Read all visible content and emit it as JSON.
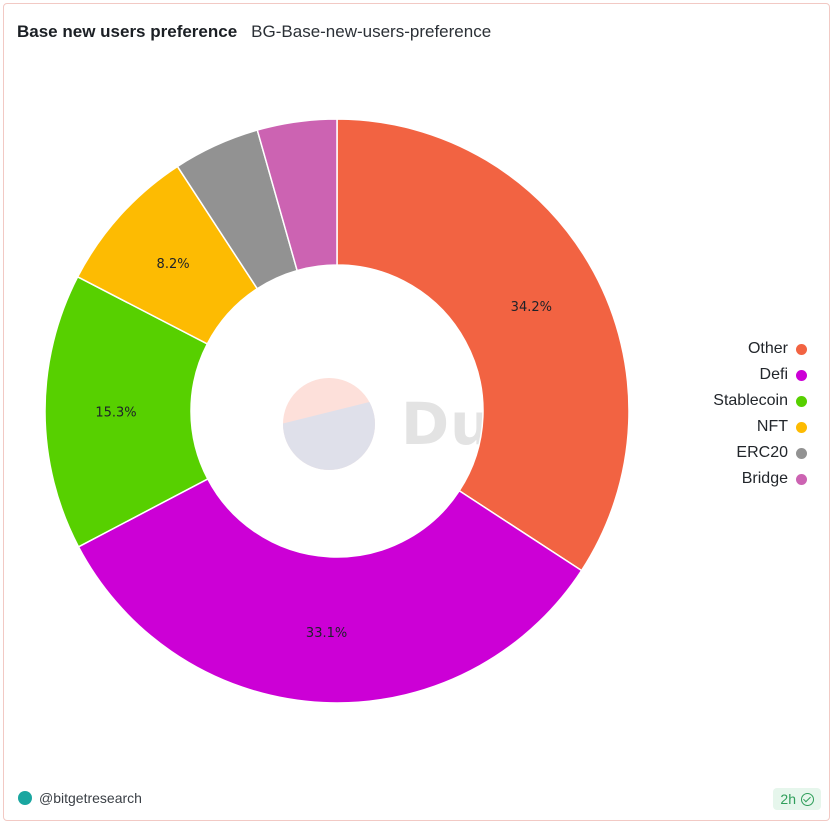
{
  "header": {
    "title": "Base new users preference",
    "subtitle": "BG-Base-new-users-preference"
  },
  "chart_data": {
    "type": "pie",
    "style": "donut",
    "categories": [
      "Other",
      "Defi",
      "Stablecoin",
      "NFT",
      "ERC20",
      "Bridge"
    ],
    "values": [
      34.2,
      33.1,
      15.3,
      8.2,
      4.8,
      4.4
    ],
    "labels": [
      "34.2%",
      "33.1%",
      "15.3%",
      "8.2%",
      "",
      ""
    ],
    "colors": [
      "#f26342",
      "#cc00d6",
      "#57d000",
      "#fdbb02",
      "#929292",
      "#cc63b2"
    ],
    "legend_position": "right",
    "unit": "%"
  },
  "legend": {
    "items": [
      {
        "label": "Other",
        "color": "#f26342"
      },
      {
        "label": "Defi",
        "color": "#cc00d6"
      },
      {
        "label": "Stablecoin",
        "color": "#57d000"
      },
      {
        "label": "NFT",
        "color": "#fdbb02"
      },
      {
        "label": "ERC20",
        "color": "#929292"
      },
      {
        "label": "Bridge",
        "color": "#cc63b2"
      }
    ]
  },
  "watermark": {
    "text": "Dune"
  },
  "footer": {
    "author": "@bitgetresearch",
    "age_badge": "2h"
  }
}
